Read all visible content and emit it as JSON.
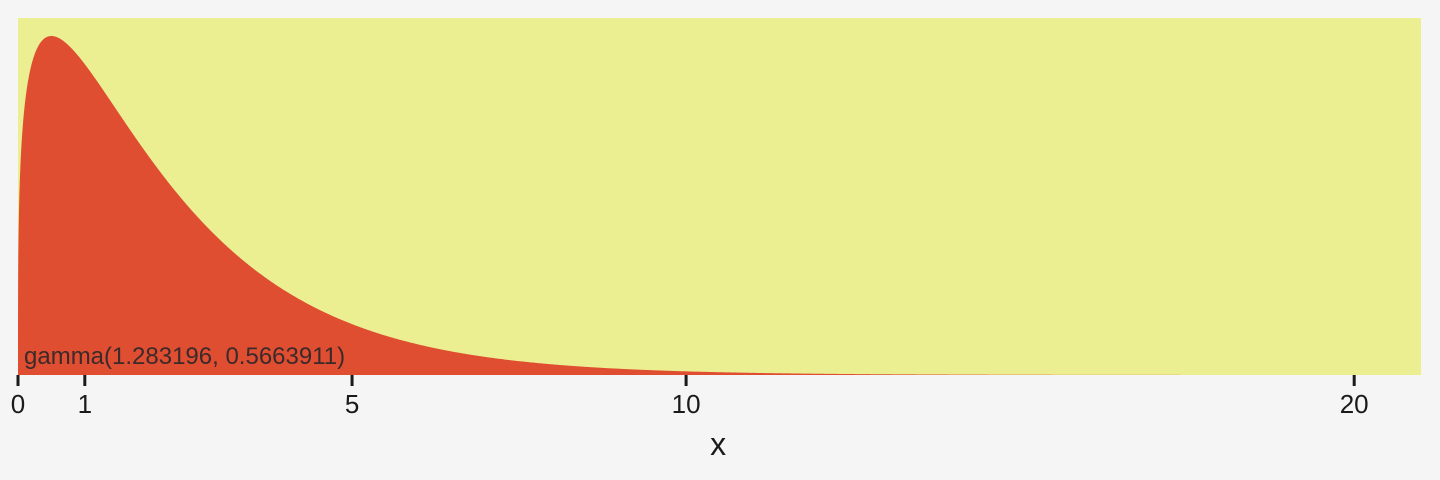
{
  "chart_data": {
    "type": "area",
    "distribution": "gamma",
    "shape": 1.283196,
    "rate": 0.5663911,
    "annotation": "gamma(1.283196, 0.5663911)",
    "xlabel": "x",
    "ylabel": "",
    "xlim": [
      0,
      21
    ],
    "xticks": [
      0,
      1,
      5,
      10,
      20
    ],
    "y_ticks_shown": false,
    "grid": false,
    "colors": {
      "page_background": "#f5f5f5",
      "panel_background": "#ebef91",
      "density_fill": "#e04e32",
      "text": "#1a1a1a",
      "axis_line": "#1a1a1a"
    }
  }
}
